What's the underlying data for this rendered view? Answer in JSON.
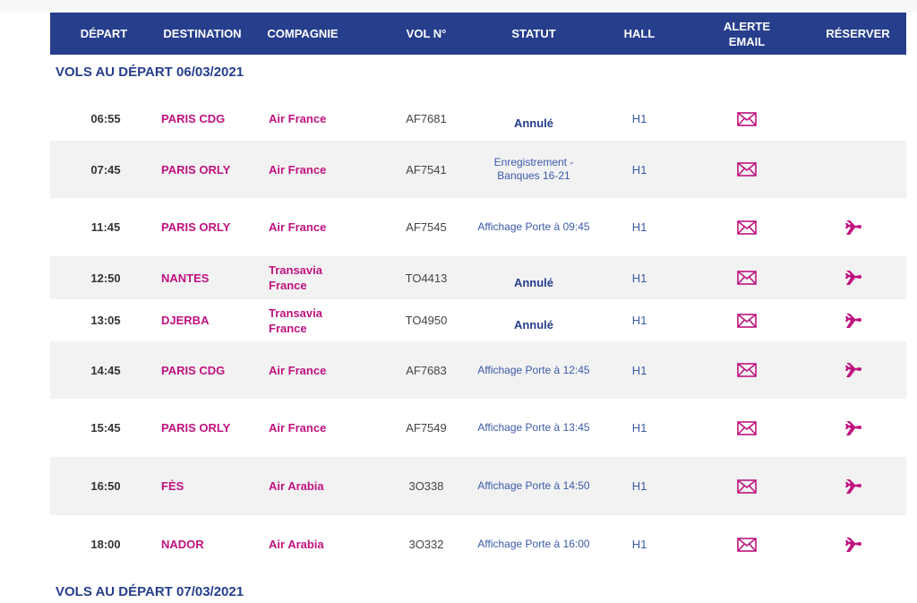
{
  "table": {
    "columns": [
      "DÉPART",
      "DESTINATION",
      "COMPAGNIE",
      "VOL N°",
      "STATUT",
      "HALL",
      "ALERTE EMAIL",
      "RÉSERVER"
    ],
    "sections": [
      {
        "title": "VOLS AU DÉPART 06/03/2021",
        "rows": [
          [
            "06:55",
            "PARIS CDG",
            "Air France",
            "AF7681",
            "Annulé",
            "H1"
          ],
          [
            "07:45",
            "PARIS ORLY",
            "Air France",
            "AF7541",
            "Enregistrement - Banques 16-21",
            "H1"
          ],
          [
            "11:45",
            "PARIS ORLY",
            "Air France",
            "AF7545",
            "Affichage Porte à 09:45",
            "H1"
          ],
          [
            "12:50",
            "NANTES",
            "Transavia France",
            "TO4413",
            "Annulé",
            "H1"
          ],
          [
            "13:05",
            "DJERBA",
            "Transavia France",
            "TO4950",
            "Annulé",
            "H1"
          ],
          [
            "14:45",
            "PARIS CDG",
            "Air France",
            "AF7683",
            "Affichage Porte à 12:45",
            "H1"
          ],
          [
            "15:45",
            "PARIS ORLY",
            "Air France",
            "AF7549",
            "Affichage Porte à 13:45",
            "H1"
          ],
          [
            "16:50",
            "FÈS",
            "Air Arabia",
            "3O338",
            "Affichage Porte à 14:50",
            "H1"
          ],
          [
            "18:00",
            "NADOR",
            "Air Arabia",
            "3O332",
            "Affichage Porte à 16:00",
            "H1"
          ]
        ]
      },
      {
        "title": "VOLS AU DÉPART 07/03/2021",
        "rows": []
      }
    ]
  }
}
